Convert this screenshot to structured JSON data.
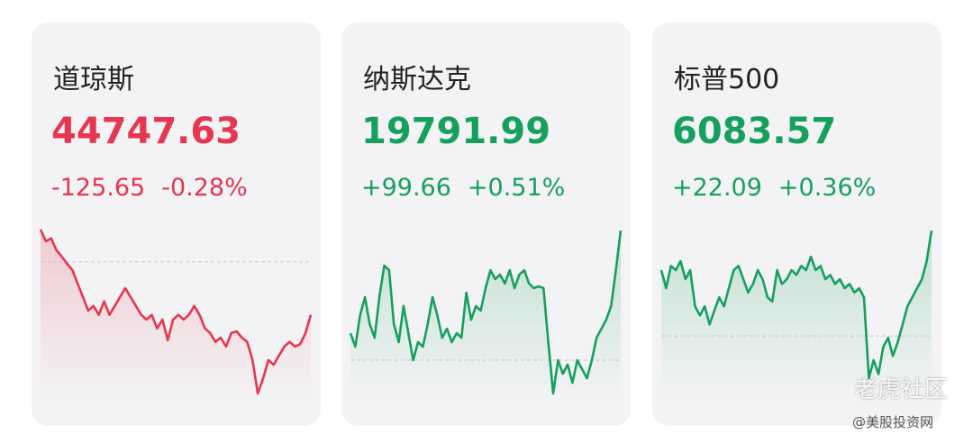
{
  "cards": [
    {
      "title": "道琼斯",
      "price": "44747.63",
      "change": "-125.65",
      "percent": "-0.28%",
      "color": "#e5374f",
      "chart": {
        "type": "line",
        "ylim": [
          44545,
          44971
        ],
        "reference": 44873.28,
        "values": [
          44950,
          44922,
          44929,
          44901,
          44886,
          44869,
          44854,
          44822,
          44790,
          44758,
          44769,
          44748,
          44780,
          44748,
          44769,
          44790,
          44811,
          44790,
          44769,
          44748,
          44737,
          44748,
          44716,
          44737,
          44688,
          44737,
          44748,
          44737,
          44748,
          44769,
          44748,
          44716,
          44705,
          44684,
          44694,
          44673,
          44705,
          44709,
          44694,
          44684,
          44641,
          44562,
          44598,
          44641,
          44630,
          44652,
          44673,
          44684,
          44673,
          44679,
          44705,
          44748
        ]
      }
    },
    {
      "title": "纳斯达克",
      "price": "19791.99",
      "change": "+99.66",
      "percent": "+0.51%",
      "color": "#16a05d",
      "chart": {
        "type": "line",
        "ylim": [
          19661.2,
          19799.6
        ],
        "reference": 19692.33,
        "values": [
          19713.1,
          19702.7,
          19726.9,
          19740.8,
          19720.0,
          19709.6,
          19740.8,
          19765.0,
          19761.5,
          19720.0,
          19706.2,
          19733.9,
          19713.1,
          19692.3,
          19706.2,
          19702.7,
          19720.0,
          19740.8,
          19726.9,
          19709.6,
          19716.5,
          19706.2,
          19713.1,
          19709.6,
          19744.2,
          19723.5,
          19733.9,
          19730.4,
          19747.7,
          19761.5,
          19754.6,
          19758.1,
          19751.2,
          19761.5,
          19747.7,
          19758.1,
          19761.5,
          19751.2,
          19747.7,
          19749.1,
          19747.7,
          19706.2,
          19666.7,
          19692.3,
          19681.9,
          19688.9,
          19675.0,
          19692.3,
          19685.4,
          19678.5,
          19692.3,
          19709.6,
          19716.5,
          19723.5,
          19733.9,
          19761.5,
          19792.0
        ]
      }
    },
    {
      "title": "标普500",
      "price": "6083.57",
      "change": "+22.09",
      "percent": "+0.36%",
      "color": "#16a05d",
      "chart": {
        "type": "line",
        "ylim": [
          6047.9,
          6085.7
        ],
        "reference": 6061.48,
        "values": [
          6075.3,
          6071.5,
          6076.2,
          6075.3,
          6077.2,
          6073.4,
          6075.3,
          6067.7,
          6065.8,
          6067.7,
          6063.9,
          6066.8,
          6069.6,
          6067.7,
          6071.5,
          6075.3,
          6076.2,
          6073.4,
          6070.6,
          6072.4,
          6075.3,
          6073.4,
          6069.6,
          6068.7,
          6075.3,
          6072.4,
          6073.4,
          6075.3,
          6074.3,
          6076.2,
          6075.3,
          6078.1,
          6075.3,
          6076.2,
          6073.4,
          6074.3,
          6072.4,
          6073.4,
          6071.5,
          6072.4,
          6070.6,
          6071.5,
          6069.6,
          6052.6,
          6056.4,
          6053.5,
          6059.2,
          6061.1,
          6057.3,
          6060.2,
          6063.9,
          6067.7,
          6069.6,
          6071.5,
          6073.4,
          6077.2,
          6083.6
        ]
      }
    }
  ],
  "watermark": {
    "brand": "老虎社区",
    "source": "@美股投资网"
  }
}
